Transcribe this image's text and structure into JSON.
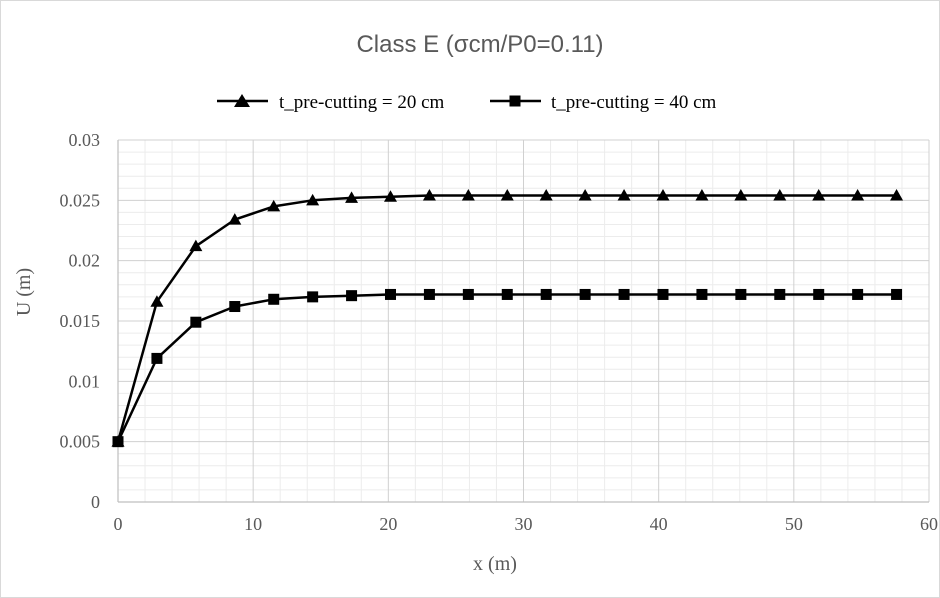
{
  "chart_data": {
    "type": "line",
    "title": "Class E (σcm/P0=0.11)",
    "xlabel": "x (m)",
    "ylabel": "U (m)",
    "xlim": [
      0,
      60
    ],
    "ylim": [
      0,
      0.03
    ],
    "x_ticks": [
      "0",
      "10",
      "20",
      "30",
      "40",
      "50",
      "60"
    ],
    "y_ticks": [
      "0",
      "0.005",
      "0.01",
      "0.015",
      "0.02",
      "0.025",
      "0.03"
    ],
    "grid": true,
    "legend_position": "top",
    "x": [
      0,
      2.88,
      5.76,
      8.64,
      11.52,
      14.4,
      17.28,
      20.16,
      23.04,
      25.92,
      28.8,
      31.68,
      34.56,
      37.44,
      40.32,
      43.2,
      46.08,
      48.96,
      51.84,
      54.72,
      57.6
    ],
    "series": [
      {
        "name": "t_pre-cutting = 20 cm",
        "marker": "triangle",
        "color": "#000000",
        "values": [
          0.005,
          0.0166,
          0.0212,
          0.0234,
          0.0245,
          0.025,
          0.0252,
          0.0253,
          0.0254,
          0.0254,
          0.0254,
          0.0254,
          0.0254,
          0.0254,
          0.0254,
          0.0254,
          0.0254,
          0.0254,
          0.0254,
          0.0254,
          0.0254
        ]
      },
      {
        "name": "t_pre-cutting = 40 cm",
        "marker": "square",
        "color": "#000000",
        "values": [
          0.005,
          0.0119,
          0.0149,
          0.0162,
          0.0168,
          0.017,
          0.0171,
          0.0172,
          0.0172,
          0.0172,
          0.0172,
          0.0172,
          0.0172,
          0.0172,
          0.0172,
          0.0172,
          0.0172,
          0.0172,
          0.0172,
          0.0172,
          0.0172
        ]
      }
    ]
  }
}
